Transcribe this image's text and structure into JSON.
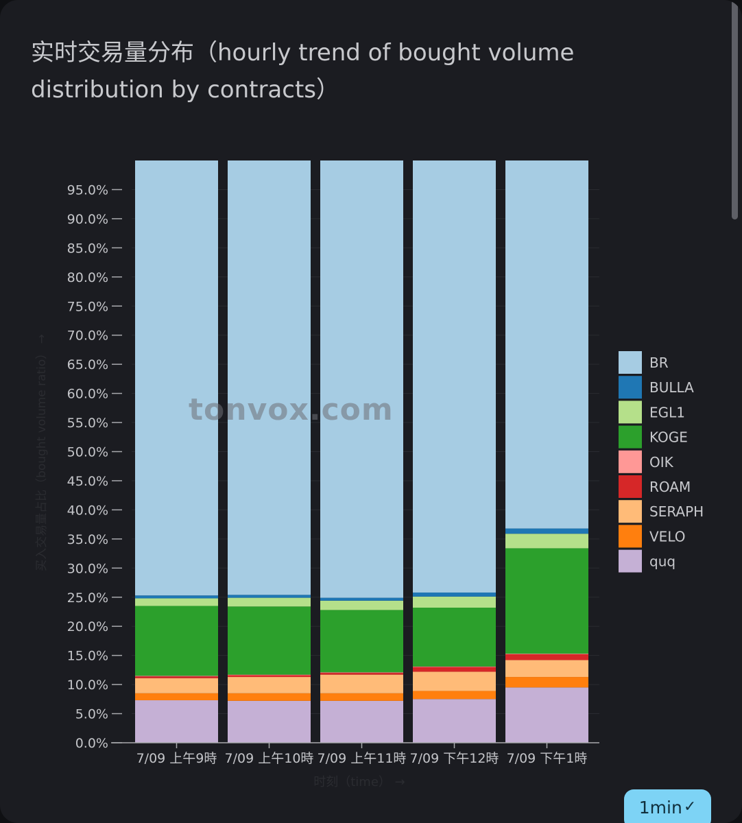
{
  "title": "实时交易量分布（hourly trend of bought volume distribution by contracts）",
  "watermark": "tonvox.com",
  "badge": {
    "label": "1min",
    "icon": "verified-check-icon"
  },
  "chart_data": {
    "type": "bar",
    "stacked": true,
    "title": "实时交易量分布（hourly trend of bought volume distribution by contracts）",
    "xlabel": "时刻（time） →",
    "ylabel": "买入交易量占比（bought volume ratio） →",
    "ylim": [
      0,
      100
    ],
    "yticks": [
      0,
      5,
      10,
      15,
      20,
      25,
      30,
      35,
      40,
      45,
      50,
      55,
      60,
      65,
      70,
      75,
      80,
      85,
      90,
      95
    ],
    "ytick_format": "percent_1dp",
    "legend_position": "right",
    "categories": [
      "7/09 上午9時",
      "7/09 上午10時",
      "7/09 上午11時",
      "7/09 下午12時",
      "7/09 下午1時"
    ],
    "series": [
      {
        "name": "quq",
        "color": "#c5b0d5",
        "values": [
          7.3,
          7.2,
          7.2,
          7.5,
          9.5
        ]
      },
      {
        "name": "VELO",
        "color": "#ff7f0e",
        "values": [
          1.2,
          1.3,
          1.3,
          1.4,
          1.8
        ]
      },
      {
        "name": "SERAPH",
        "color": "#ffbb78",
        "values": [
          2.6,
          2.8,
          3.2,
          3.3,
          2.9
        ]
      },
      {
        "name": "ROAM",
        "color": "#d62728",
        "values": [
          0.3,
          0.3,
          0.3,
          0.8,
          1.0
        ]
      },
      {
        "name": "OIK",
        "color": "#ff9896",
        "values": [
          0.1,
          0.1,
          0.1,
          0.1,
          0.1
        ]
      },
      {
        "name": "KOGE",
        "color": "#2ca02c",
        "values": [
          12.0,
          11.7,
          10.7,
          10.1,
          18.1
        ]
      },
      {
        "name": "EGL1",
        "color": "#b5e08a",
        "values": [
          1.3,
          1.5,
          1.6,
          1.9,
          2.5
        ]
      },
      {
        "name": "BULLA",
        "color": "#1f77b4",
        "values": [
          0.5,
          0.5,
          0.5,
          0.7,
          0.9
        ]
      },
      {
        "name": "BR",
        "color": "#a6cce3",
        "values": [
          74.7,
          74.6,
          75.1,
          74.2,
          63.2
        ]
      }
    ],
    "legend_order": [
      "BR",
      "BULLA",
      "EGL1",
      "KOGE",
      "OIK",
      "ROAM",
      "SERAPH",
      "VELO",
      "quq"
    ]
  }
}
